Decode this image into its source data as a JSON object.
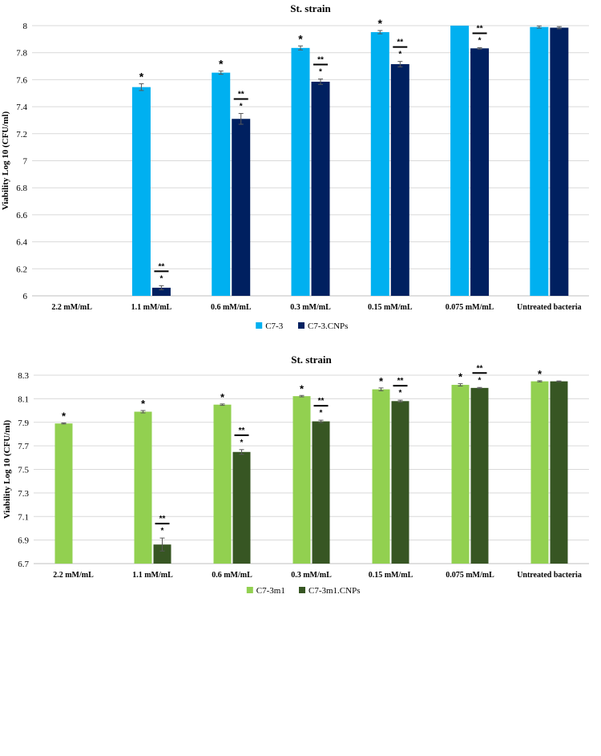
{
  "chart_data": [
    {
      "type": "bar",
      "title": "St. strain",
      "xlabel": "",
      "ylabel": "Viability Log 10 (CFU/ml)",
      "ylim": [
        6,
        8
      ],
      "yticks": [
        "6",
        "6.2",
        "6.4",
        "6.6",
        "6.8",
        "7",
        "7.2",
        "7.4",
        "7.6",
        "7.8",
        "8"
      ],
      "legend_position": "bottom",
      "categories": [
        "2.2 mM/mL",
        "1.1 mM/mL",
        "0.6 mM/mL",
        "0.3 mM/mL",
        "0.15 mM/mL",
        "0.075 mM/mL",
        "Untreated bacteria"
      ],
      "series": [
        {
          "name": "C7-3",
          "color": "#00B0F0",
          "values": [
            null,
            7.545,
            7.652,
            7.835,
            7.952,
            8.0,
            7.99
          ],
          "errors": [
            null,
            0.025,
            0.012,
            0.015,
            0.012,
            0.0,
            0.008
          ],
          "annotations": [
            null,
            "*",
            "*",
            "*",
            "*",
            "",
            ""
          ]
        },
        {
          "name": "C7-3.CNPs",
          "color": "#002060",
          "values": [
            null,
            6.06,
            7.31,
            7.585,
            7.715,
            7.832,
            7.985
          ],
          "errors": [
            null,
            0.015,
            0.04,
            0.02,
            0.02,
            0.005,
            0.008
          ],
          "annotations": [
            null,
            "*",
            "*",
            "*",
            "*",
            "*",
            ""
          ],
          "bracket_annotations": [
            null,
            "**",
            "**",
            "**",
            "**",
            "**",
            ""
          ]
        }
      ]
    },
    {
      "type": "bar",
      "title": "St. strain",
      "xlabel": "",
      "ylabel": "Viability Log 10 (CFU/ml)",
      "ylim": [
        6.7,
        8.3
      ],
      "yticks": [
        "6.7",
        "6.9",
        "7.1",
        "7.3",
        "7.5",
        "7.7",
        "7.9",
        "8.1",
        "8.3"
      ],
      "legend_position": "bottom",
      "categories": [
        "2.2 mM/mL",
        "1.1 mM/mL",
        "0.6 mM/mL",
        "0.3 mM/mL",
        "0.15 mM/mL",
        "0.075 mM/mL",
        "Untreated bacteria"
      ],
      "series": [
        {
          "name": "C7-3m1",
          "color": "#92D050",
          "values": [
            7.89,
            7.99,
            8.05,
            8.122,
            8.18,
            8.218,
            8.248
          ],
          "errors": [
            0.004,
            0.01,
            0.006,
            0.006,
            0.012,
            0.01,
            0.005
          ],
          "annotations": [
            "*",
            "*",
            "*",
            "*",
            "*",
            "*",
            "*"
          ]
        },
        {
          "name": "C7-3m1.CNPs",
          "color": "#375623",
          "values": [
            null,
            6.862,
            7.648,
            7.908,
            8.08,
            8.192,
            8.248
          ],
          "errors": [
            null,
            0.055,
            0.02,
            0.01,
            0.008,
            0.004,
            0.003
          ],
          "annotations": [
            null,
            "*",
            "*",
            "*",
            "*",
            "*",
            ""
          ],
          "bracket_annotations": [
            null,
            "**",
            "**",
            "**",
            "**",
            "**",
            ""
          ]
        }
      ]
    }
  ]
}
